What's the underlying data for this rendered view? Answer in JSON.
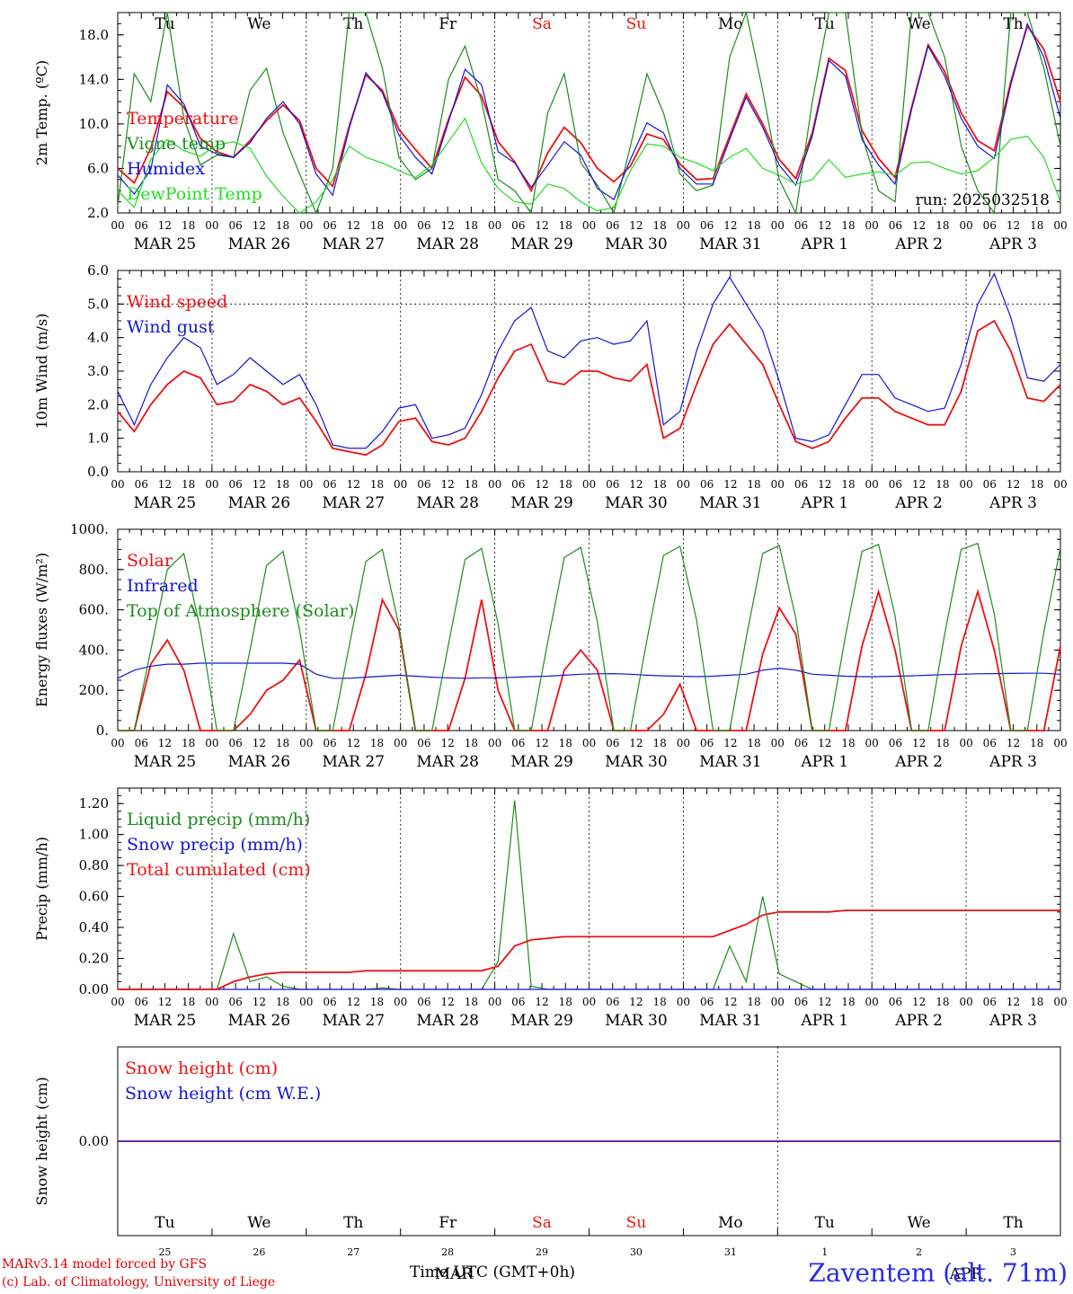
{
  "meta": {
    "run_label": "run: 2025032518",
    "credit_line1": "MARv3.14 model forced by GFS",
    "credit_line2": "(c) Lab. of Climatology, University of Liege",
    "station": "Zaventem (alt. 71m)",
    "x_title": "Time UTC (GMT+0h)",
    "month_overlay": "MAR",
    "month_overlay2": "APR"
  },
  "colors": {
    "red": "#ee1111",
    "green": "#1c8c1c",
    "blue": "#1414d8",
    "lightgreen": "#22dd22",
    "weekend": "#ee1111"
  },
  "days": {
    "weekday_labels": [
      "Tu",
      "We",
      "Th",
      "Fr",
      "Sa",
      "Su",
      "Mo",
      "Tu",
      "We",
      "Th"
    ],
    "weekend_flags": [
      false,
      false,
      false,
      false,
      true,
      true,
      false,
      false,
      false,
      false
    ],
    "date_labels": [
      "MAR 25",
      "MAR 26",
      "MAR 27",
      "MAR 28",
      "MAR 29",
      "MAR 30",
      "MAR 31",
      "APR  1",
      "APR  2",
      "APR  3"
    ],
    "day_numbers": [
      "25",
      "26",
      "27",
      "28",
      "29",
      "30",
      "31",
      "1",
      "2",
      "3"
    ],
    "hour_ticks": [
      "00",
      "06",
      "12",
      "18"
    ],
    "end_tick": "00"
  },
  "chart_data": [
    {
      "type": "line",
      "id": "temperature",
      "ylabel": "2m Temp. (ºC)",
      "ylim": [
        2,
        20
      ],
      "yticks": [
        "2.0",
        "6.0",
        "10.0",
        "14.0",
        "18.0"
      ],
      "ytick_values": [
        2,
        6,
        10,
        14,
        18
      ],
      "x_unit": "hours since MAR 25 00 UTC (3-hourly)",
      "series": [
        {
          "name": "Temperature",
          "color": "red",
          "values": [
            6.0,
            4.7,
            7.8,
            12.9,
            11.5,
            8.7,
            7.5,
            7.0,
            8.5,
            10.3,
            11.7,
            10.3,
            6.0,
            4.4,
            9.8,
            14.4,
            13.0,
            9.5,
            7.7,
            6.0,
            10.4,
            14.2,
            12.5,
            8.4,
            6.6,
            4.0,
            7.4,
            9.7,
            8.3,
            6.0,
            4.8,
            6.2,
            9.1,
            8.6,
            6.4,
            5.0,
            5.1,
            8.9,
            12.7,
            10.0,
            6.8,
            5.1,
            9.2,
            15.9,
            14.8,
            9.4,
            6.9,
            5.2,
            11.5,
            17.1,
            14.7,
            11.0,
            8.5,
            7.6,
            13.8,
            18.8,
            16.7,
            12.0
          ]
        },
        {
          "name": "Vigne temp",
          "color": "green",
          "values": [
            2.6,
            14.5,
            12.0,
            20.5,
            10.5,
            6.3,
            7.2,
            7.0,
            13.0,
            15.0,
            9.2,
            5.5,
            2.0,
            6.0,
            20.0,
            22.0,
            15.0,
            7.0,
            5.0,
            6.0,
            14.0,
            17.0,
            12.0,
            5.0,
            4.0,
            2.0,
            11.0,
            14.5,
            6.5,
            4.5,
            2.0,
            8.0,
            14.5,
            11.0,
            5.5,
            4.0,
            4.5,
            16.0,
            24.0,
            13.0,
            5.0,
            1.5,
            12.0,
            23.0,
            20.0,
            9.0,
            4.0,
            3.0,
            21.0,
            26.0,
            16.0,
            8.0,
            4.0,
            2.0,
            26.0,
            22.0,
            15.0,
            8.0
          ]
        },
        {
          "name": "Humidex",
          "color": "blue",
          "values": [
            5.4,
            3.7,
            5.9,
            13.5,
            11.8,
            8.0,
            7.3,
            7.0,
            8.3,
            10.5,
            12.0,
            10.0,
            5.5,
            3.6,
            9.6,
            14.6,
            12.8,
            9.0,
            7.0,
            5.5,
            10.2,
            14.9,
            13.5,
            7.5,
            6.5,
            4.3,
            6.3,
            8.4,
            7.2,
            4.2,
            3.2,
            6.8,
            10.1,
            9.2,
            6.0,
            4.6,
            4.6,
            8.6,
            12.4,
            9.7,
            6.3,
            4.5,
            8.9,
            15.7,
            14.3,
            8.6,
            6.3,
            4.6,
            11.3,
            17.0,
            14.3,
            10.5,
            8.0,
            6.9,
            13.5,
            19.0,
            16.0,
            10.5
          ]
        },
        {
          "name": "DewPoint Temp",
          "color": "lightgreen",
          "values": [
            4.0,
            2.5,
            6.8,
            8.6,
            7.6,
            7.1,
            8.1,
            8.4,
            7.8,
            5.3,
            3.5,
            2.0,
            3.0,
            5.0,
            8.0,
            7.0,
            6.5,
            5.8,
            5.2,
            6.3,
            8.4,
            10.5,
            6.5,
            4.2,
            3.0,
            2.8,
            4.6,
            4.2,
            3.0,
            2.2,
            2.5,
            5.8,
            8.2,
            8.0,
            7.0,
            6.5,
            5.8,
            7.0,
            7.8,
            6.0,
            5.4,
            4.6,
            5.0,
            6.8,
            5.2,
            5.5,
            5.7,
            5.4,
            6.5,
            6.6,
            6.0,
            5.5,
            5.8,
            7.0,
            8.6,
            8.9,
            7.0,
            3.0
          ]
        }
      ],
      "legend": [
        "Temperature",
        "Vigne temp",
        "Humidex",
        "DewPoint Temp"
      ],
      "legend_colors": [
        "red",
        "green",
        "blue",
        "lightgreen"
      ]
    },
    {
      "type": "line",
      "id": "wind",
      "ylabel": "10m Wind (m/s)",
      "ylim": [
        0,
        6
      ],
      "yticks": [
        "0.0",
        "1.0",
        "2.0",
        "3.0",
        "4.0",
        "5.0",
        "6.0"
      ],
      "ytick_values": [
        0,
        1,
        2,
        3,
        4,
        5,
        6
      ],
      "reference_line": 5,
      "series": [
        {
          "name": "Wind speed",
          "color": "red",
          "values": [
            1.8,
            1.2,
            2.0,
            2.6,
            3.0,
            2.8,
            2.0,
            2.1,
            2.6,
            2.4,
            2.0,
            2.2,
            1.5,
            0.7,
            0.6,
            0.5,
            0.8,
            1.5,
            1.6,
            0.9,
            0.8,
            1.0,
            1.8,
            2.8,
            3.6,
            3.8,
            2.7,
            2.6,
            3.0,
            3.0,
            2.8,
            2.7,
            3.2,
            1.0,
            1.3,
            2.6,
            3.8,
            4.4,
            3.8,
            3.2,
            2.0,
            0.9,
            0.7,
            0.9,
            1.6,
            2.2,
            2.2,
            1.8,
            1.6,
            1.4,
            1.4,
            2.4,
            4.2,
            4.5,
            3.6,
            2.2,
            2.1,
            2.6
          ]
        },
        {
          "name": "Wind gust",
          "color": "blue",
          "values": [
            2.4,
            1.4,
            2.6,
            3.4,
            4.0,
            3.7,
            2.6,
            2.9,
            3.4,
            3.0,
            2.6,
            2.9,
            2.0,
            0.8,
            0.7,
            0.7,
            1.2,
            1.9,
            2.0,
            1.0,
            1.1,
            1.3,
            2.3,
            3.6,
            4.5,
            4.9,
            3.6,
            3.4,
            3.9,
            4.0,
            3.8,
            3.9,
            4.5,
            1.4,
            1.8,
            3.6,
            5.0,
            5.8,
            5.0,
            4.2,
            2.7,
            1.0,
            0.9,
            1.1,
            2.0,
            2.9,
            2.9,
            2.2,
            2.0,
            1.8,
            1.9,
            3.2,
            5.0,
            5.9,
            4.6,
            2.8,
            2.7,
            3.2
          ]
        }
      ],
      "legend": [
        "Wind speed",
        "Wind gust"
      ],
      "legend_colors": [
        "red",
        "blue"
      ]
    },
    {
      "type": "line",
      "id": "energy",
      "ylabel": "Energy fluxes (W/m²)",
      "ylim": [
        0,
        1000
      ],
      "yticks": [
        "0.",
        "200.",
        "400.",
        "600.",
        "800.",
        "1000."
      ],
      "ytick_values": [
        0,
        200,
        400,
        600,
        800,
        1000
      ],
      "series": [
        {
          "name": "Solar",
          "color": "red",
          "values": [
            0,
            0,
            330,
            450,
            300,
            0,
            0,
            0,
            80,
            200,
            250,
            350,
            0,
            0,
            0,
            280,
            650,
            500,
            0,
            0,
            0,
            260,
            650,
            200,
            0,
            0,
            0,
            300,
            400,
            300,
            0,
            0,
            0,
            80,
            230,
            0,
            0,
            0,
            0,
            380,
            610,
            480,
            0,
            0,
            0,
            420,
            690,
            400,
            0,
            0,
            0,
            420,
            690,
            400,
            0,
            0,
            0,
            420
          ]
        },
        {
          "name": "Infrared",
          "color": "blue",
          "values": [
            260,
            300,
            320,
            330,
            330,
            335,
            335,
            335,
            335,
            335,
            335,
            330,
            280,
            260,
            260,
            265,
            270,
            275,
            270,
            265,
            262,
            260,
            262,
            262,
            265,
            268,
            270,
            275,
            280,
            282,
            283,
            280,
            275,
            272,
            270,
            268,
            270,
            275,
            280,
            300,
            310,
            300,
            280,
            275,
            270,
            268,
            268,
            270,
            272,
            275,
            278,
            280,
            282,
            283,
            284,
            285,
            285,
            280
          ]
        },
        {
          "name": "Top of Atmosphere (Solar)",
          "color": "green",
          "values": [
            0,
            0,
            400,
            800,
            880,
            500,
            0,
            0,
            400,
            820,
            890,
            500,
            0,
            0,
            420,
            840,
            900,
            520,
            0,
            0,
            430,
            850,
            905,
            530,
            0,
            0,
            440,
            860,
            910,
            540,
            0,
            0,
            450,
            870,
            915,
            550,
            0,
            0,
            460,
            880,
            920,
            560,
            0,
            0,
            470,
            890,
            925,
            570,
            0,
            0,
            480,
            900,
            930,
            580,
            0,
            0,
            490,
            910
          ]
        }
      ],
      "legend": [
        "Solar",
        "Infrared",
        "Top of Atmosphere (Solar)"
      ],
      "legend_colors": [
        "red",
        "blue",
        "green"
      ]
    },
    {
      "type": "line",
      "id": "precip",
      "ylabel": "Precip (mm/h)",
      "ylim": [
        0,
        1.3
      ],
      "yticks": [
        "0.00",
        "0.20",
        "0.40",
        "0.60",
        "0.80",
        "1.00",
        "1.20"
      ],
      "ytick_values": [
        0,
        0.2,
        0.4,
        0.6,
        0.8,
        1.0,
        1.2
      ],
      "series": [
        {
          "name": "Liquid precip (mm/h)",
          "color": "green",
          "values": [
            0,
            0,
            0,
            0,
            0,
            0,
            0,
            0.36,
            0.05,
            0.08,
            0.02,
            0,
            0,
            0,
            0,
            0,
            0.01,
            0,
            0,
            0,
            0,
            0,
            0,
            0.18,
            1.22,
            0.02,
            0,
            0,
            0,
            0,
            0,
            0,
            0,
            0,
            0,
            0,
            0,
            0.28,
            0.05,
            0.6,
            0.1,
            0.05,
            0,
            0,
            0,
            0,
            0,
            0,
            0,
            0,
            0,
            0,
            0,
            0,
            0,
            0,
            0,
            0
          ]
        },
        {
          "name": "Snow precip (mm/h)",
          "color": "blue",
          "values": [
            0,
            0,
            0,
            0,
            0,
            0,
            0,
            0,
            0,
            0,
            0,
            0,
            0,
            0,
            0,
            0,
            0,
            0,
            0,
            0,
            0,
            0,
            0,
            0,
            0,
            0,
            0,
            0,
            0,
            0,
            0,
            0,
            0,
            0,
            0,
            0,
            0,
            0,
            0,
            0,
            0,
            0,
            0,
            0,
            0,
            0,
            0,
            0,
            0,
            0,
            0,
            0,
            0,
            0,
            0,
            0,
            0,
            0
          ]
        },
        {
          "name": "Total cumulated (cm)",
          "color": "red",
          "values": [
            0,
            0,
            0,
            0,
            0,
            0,
            0,
            0.05,
            0.08,
            0.1,
            0.11,
            0.11,
            0.11,
            0.11,
            0.11,
            0.12,
            0.12,
            0.12,
            0.12,
            0.12,
            0.12,
            0.12,
            0.12,
            0.15,
            0.28,
            0.32,
            0.33,
            0.34,
            0.34,
            0.34,
            0.34,
            0.34,
            0.34,
            0.34,
            0.34,
            0.34,
            0.34,
            0.38,
            0.42,
            0.48,
            0.5,
            0.5,
            0.5,
            0.5,
            0.51,
            0.51,
            0.51,
            0.51,
            0.51,
            0.51,
            0.51,
            0.51,
            0.51,
            0.51,
            0.51,
            0.51,
            0.51,
            0.51
          ]
        }
      ],
      "legend": [
        "Liquid precip (mm/h)",
        "Snow precip (mm/h)",
        "Total cumulated (cm)"
      ],
      "legend_colors": [
        "green",
        "blue",
        "red"
      ]
    },
    {
      "type": "line",
      "id": "snow",
      "ylabel": "Snow height (cm)",
      "ylim": [
        -1,
        1
      ],
      "yticks": [
        "0.00"
      ],
      "ytick_values": [
        0
      ],
      "series": [
        {
          "name": "Snow height (cm)",
          "color": "red",
          "values": [
            0,
            0,
            0,
            0,
            0,
            0,
            0,
            0,
            0,
            0,
            0,
            0,
            0,
            0,
            0,
            0,
            0,
            0,
            0,
            0,
            0,
            0,
            0,
            0,
            0,
            0,
            0,
            0,
            0,
            0,
            0,
            0,
            0,
            0,
            0,
            0,
            0,
            0,
            0,
            0,
            0,
            0,
            0,
            0,
            0,
            0,
            0,
            0,
            0,
            0,
            0,
            0,
            0,
            0,
            0,
            0,
            0,
            0
          ]
        },
        {
          "name": "Snow height (cm W.E.)",
          "color": "blue",
          "values": [
            0,
            0,
            0,
            0,
            0,
            0,
            0,
            0,
            0,
            0,
            0,
            0,
            0,
            0,
            0,
            0,
            0,
            0,
            0,
            0,
            0,
            0,
            0,
            0,
            0,
            0,
            0,
            0,
            0,
            0,
            0,
            0,
            0,
            0,
            0,
            0,
            0,
            0,
            0,
            0,
            0,
            0,
            0,
            0,
            0,
            0,
            0,
            0,
            0,
            0,
            0,
            0,
            0,
            0,
            0,
            0,
            0,
            0
          ]
        }
      ],
      "legend": [
        "Snow height (cm)",
        "Snow height (cm W.E.)"
      ],
      "legend_colors": [
        "red",
        "blue"
      ]
    }
  ]
}
